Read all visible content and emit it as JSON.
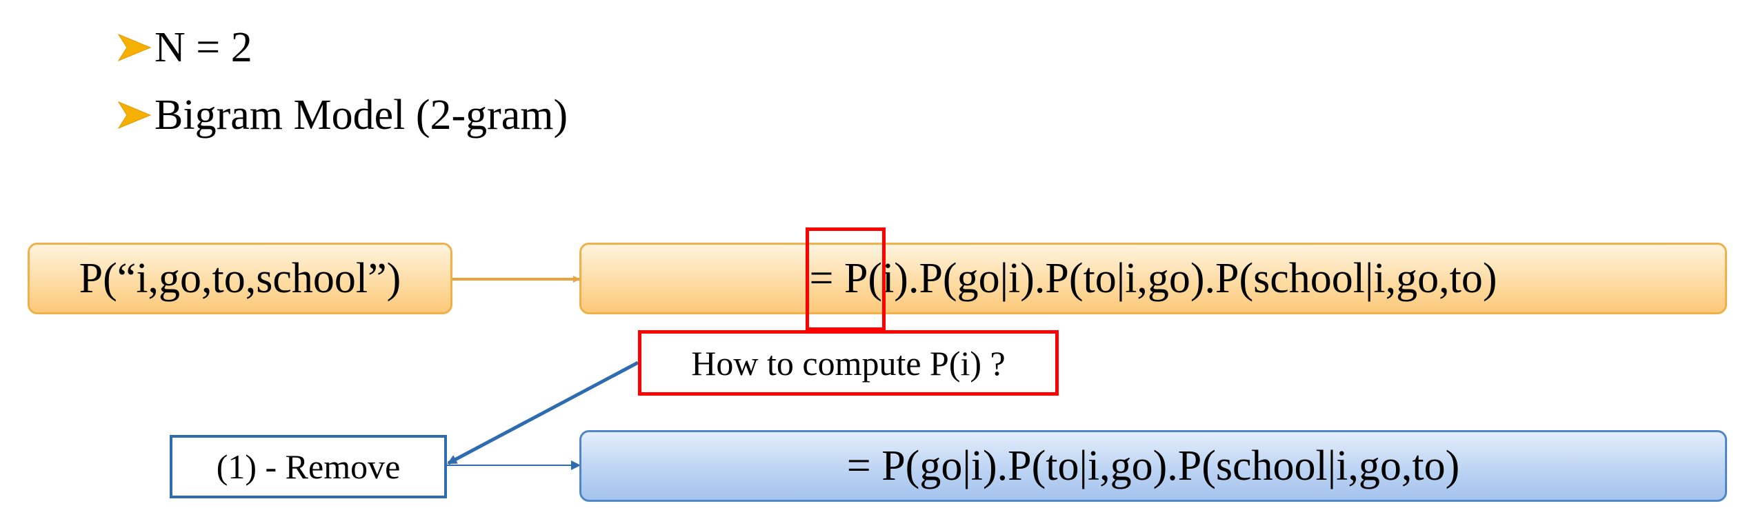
{
  "bullets": [
    {
      "text": "N = 2",
      "icon": "arrow-bullet-icon"
    },
    {
      "text": "Bigram Model (2-gram)",
      "icon": "arrow-bullet-icon"
    }
  ],
  "diagram": {
    "probability_box": "P(“i,go,to,school”)",
    "chain_rule_expansion": "= P(i).P(go|i).P(to|i,go).P(school|i,go,to)",
    "question": "How to compute P(i) ?",
    "remove_step": "(1) - Remove",
    "result_expansion": "= P(go|i).P(to|i,go).P(school|i,go,to)"
  },
  "colors": {
    "bullet_arrow": "#f5b000",
    "orange_fill": "#fddca4",
    "orange_border": "#f0b04a",
    "blue_fill": "#bdd4f3",
    "blue_border": "#4f86c9",
    "highlight_red": "#ff0000",
    "connector_orange": "#e8a33e",
    "connector_blue": "#2e6bb0"
  }
}
